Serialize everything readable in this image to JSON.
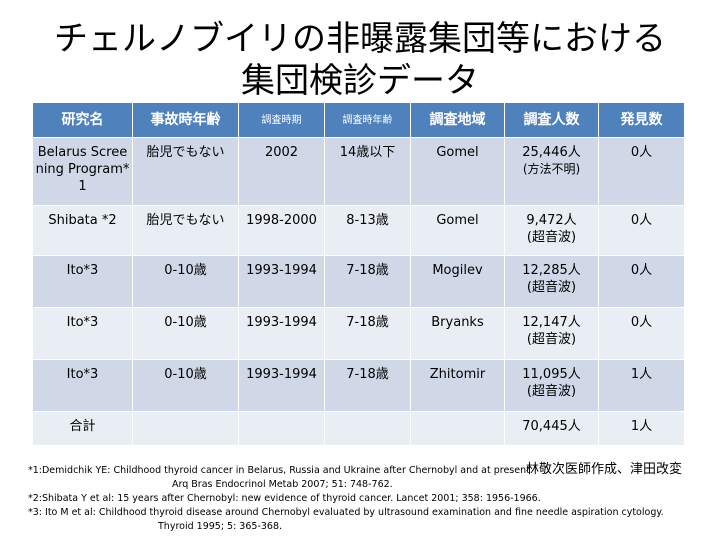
{
  "title": {
    "line1": "チェルノブイリの非曝露集団等における",
    "line2": "集団検診データ"
  },
  "table": {
    "headers": [
      "研究名",
      "事故時年齢",
      "調査時期",
      "調査時年齢",
      "調査地域",
      "調査人数",
      "発見数"
    ],
    "rows": [
      {
        "study": "Belarus Screening Program*1",
        "age_at_accident": "胎児でもない",
        "period": "2002",
        "age_at_survey": "14歳以下",
        "region": "Gomel",
        "count": "25,446人",
        "count_note": "(方法不明)",
        "found": "0人"
      },
      {
        "study": "Shibata *2",
        "age_at_accident": "胎児でもない",
        "period": "1998-2000",
        "age_at_survey": "8-13歳",
        "region": "Gomel",
        "count": "9,472人",
        "count_note": "(超音波)",
        "found": "0人"
      },
      {
        "study": "Ito*3",
        "age_at_accident": "0-10歳",
        "period": "1993-1994",
        "age_at_survey": "7-18歳",
        "region": "Mogilev",
        "count": "12,285人",
        "count_note": "(超音波)",
        "found": "0人"
      },
      {
        "study": "Ito*3",
        "age_at_accident": "0-10歳",
        "period": "1993-1994",
        "age_at_survey": "7-18歳",
        "region": "Bryanks",
        "count": "12,147人",
        "count_note": "(超音波)",
        "found": "0人"
      },
      {
        "study": "Ito*3",
        "age_at_accident": "0-10歳",
        "period": "1993-1994",
        "age_at_survey": "7-18歳",
        "region": "Zhitomir",
        "count": "11,095人",
        "count_note": "(超音波)",
        "found": "1人"
      },
      {
        "study": "合計",
        "age_at_accident": "",
        "period": "",
        "age_at_survey": "",
        "region": "",
        "count": "70,445人",
        "count_note": "",
        "found": "1人"
      }
    ]
  },
  "credit": "林敬次医師作成、津田改変",
  "references": {
    "ref1_line1": "*1:Demidchik YE: Childhood thyroid cancer in Belarus, Russia and Ukraine after Chernobyl and at present.",
    "ref1_line2": "Arq Bras Endocrinol Metab 2007; 51: 748-762.",
    "ref2": "*2:Shibata Y et al: 15 years after Chernobyl: new evidence of thyroid cancer. Lancet 2001; 358: 1956-1966.",
    "ref3_line1": "*3: Ito M et al: Childhood thyroid disease around Chernobyl evaluated by ultrasound examination and fine needle aspiration cytology.",
    "ref3_line2": "Thyroid 1995; 5: 365-368."
  }
}
